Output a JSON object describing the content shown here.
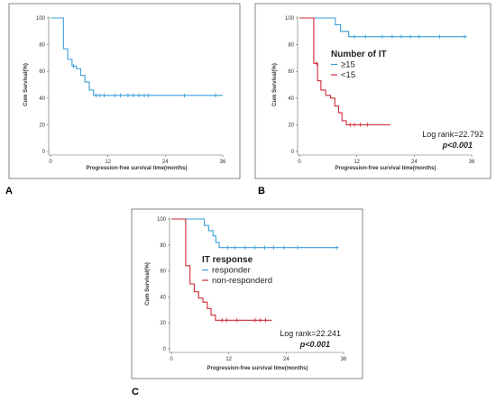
{
  "colors": {
    "blue": "#3a9fd8",
    "red": "#cc2a36",
    "axis": "#666666",
    "frame": "#666666"
  },
  "chart_data": [
    {
      "panel": "A",
      "type": "line",
      "step": true,
      "ylabel": "Cum Survival(%)",
      "xlabel": "Progression-free survival time(months)",
      "xlim": [
        0,
        36
      ],
      "ylim": [
        0,
        100
      ],
      "xticks": [
        0,
        12,
        24,
        36
      ],
      "yticks": [
        0,
        20,
        40,
        60,
        80,
        100
      ],
      "legend": null,
      "logrank": null,
      "pvalue": null,
      "series": [
        {
          "color": "#3a9fd8",
          "steps": [
            [
              0,
              100
            ],
            [
              2.7,
              77
            ],
            [
              3.6,
              69
            ],
            [
              4.5,
              64
            ],
            [
              5.4,
              62
            ],
            [
              6.3,
              57
            ],
            [
              7.2,
              52
            ],
            [
              8.1,
              46
            ],
            [
              9.0,
              42
            ],
            [
              36,
              42
            ]
          ],
          "censors": [
            [
              4.8,
              64
            ],
            [
              9.5,
              42
            ],
            [
              10.3,
              42
            ],
            [
              11.2,
              42
            ],
            [
              13.5,
              42
            ],
            [
              14.6,
              42
            ],
            [
              16.2,
              42
            ],
            [
              17.3,
              42
            ],
            [
              18.5,
              42
            ],
            [
              19.6,
              42
            ],
            [
              20.4,
              42
            ],
            [
              28.0,
              42
            ],
            [
              34.5,
              42
            ]
          ]
        }
      ]
    },
    {
      "panel": "B",
      "type": "line",
      "step": true,
      "ylabel": "Cum Survival(%)",
      "xlabel": "Progression-free survival time(months)",
      "xlim": [
        0,
        36
      ],
      "ylim": [
        0,
        100
      ],
      "xticks": [
        0,
        12,
        24,
        36
      ],
      "yticks": [
        0,
        20,
        40,
        60,
        80,
        100
      ],
      "legend": {
        "title": "Number of IT",
        "entries": [
          "≥15",
          "<15"
        ]
      },
      "logrank": "Log rank=22.792",
      "pvalue": "p<0.001",
      "series": [
        {
          "name": "≥15",
          "color": "#3a9fd8",
          "steps": [
            [
              0,
              100
            ],
            [
              7.5,
              95
            ],
            [
              8.6,
              90
            ],
            [
              10.3,
              86
            ],
            [
              35,
              86
            ]
          ],
          "censors": [
            [
              11.5,
              86
            ],
            [
              13.8,
              86
            ],
            [
              17.3,
              86
            ],
            [
              19.4,
              86
            ],
            [
              21.3,
              86
            ],
            [
              23.2,
              86
            ],
            [
              25.0,
              86
            ],
            [
              29.3,
              86
            ],
            [
              34.5,
              86
            ]
          ]
        },
        {
          "name": "<15",
          "color": "#cc2a36",
          "steps": [
            [
              0,
              100
            ],
            [
              3.0,
              66
            ],
            [
              3.8,
              53
            ],
            [
              4.5,
              46
            ],
            [
              5.5,
              42
            ],
            [
              6.5,
              40
            ],
            [
              7.4,
              34
            ],
            [
              8.2,
              29
            ],
            [
              8.9,
              23
            ],
            [
              9.8,
              20
            ],
            [
              19,
              20
            ]
          ],
          "censors": [
            [
              3.6,
              66
            ],
            [
              10.6,
              20
            ],
            [
              11.5,
              20
            ],
            [
              12.7,
              20
            ],
            [
              14.2,
              20
            ]
          ]
        }
      ]
    },
    {
      "panel": "C",
      "type": "line",
      "step": true,
      "ylabel": "Cum Survival(%)",
      "xlabel": "Progression-free survival time(months)",
      "xlim": [
        0,
        36
      ],
      "ylim": [
        0,
        100
      ],
      "xticks": [
        0,
        12,
        24,
        36
      ],
      "yticks": [
        0,
        20,
        40,
        60,
        80,
        100
      ],
      "legend": {
        "title": "IT response",
        "entries": [
          "responder",
          "non-responderd"
        ]
      },
      "logrank": "Log rank=22.241",
      "pvalue": "p<0.001",
      "series": [
        {
          "name": "responder",
          "color": "#3a9fd8",
          "steps": [
            [
              0,
              100
            ],
            [
              6.9,
              95
            ],
            [
              7.8,
              91
            ],
            [
              8.7,
              87
            ],
            [
              9.3,
              82
            ],
            [
              10.0,
              78
            ],
            [
              35,
              78
            ]
          ],
          "censors": [
            [
              11.8,
              78
            ],
            [
              13.3,
              78
            ],
            [
              15.4,
              78
            ],
            [
              17.5,
              78
            ],
            [
              19.5,
              78
            ],
            [
              21.4,
              78
            ],
            [
              23.6,
              78
            ],
            [
              26.4,
              78
            ],
            [
              34.5,
              78
            ]
          ]
        },
        {
          "name": "non-responderd",
          "color": "#cc2a36",
          "steps": [
            [
              0,
              100
            ],
            [
              3.0,
              64
            ],
            [
              3.9,
              50
            ],
            [
              4.8,
              44
            ],
            [
              5.7,
              39
            ],
            [
              6.6,
              36
            ],
            [
              7.5,
              31
            ],
            [
              8.3,
              26
            ],
            [
              9.2,
              22
            ],
            [
              21,
              22
            ]
          ],
          "censors": [
            [
              10.6,
              22
            ],
            [
              11.6,
              22
            ],
            [
              13.7,
              22
            ],
            [
              17.5,
              22
            ],
            [
              18.6,
              22
            ],
            [
              19.7,
              22
            ]
          ]
        }
      ]
    }
  ],
  "panel_letters": [
    "A",
    "B",
    "C"
  ]
}
